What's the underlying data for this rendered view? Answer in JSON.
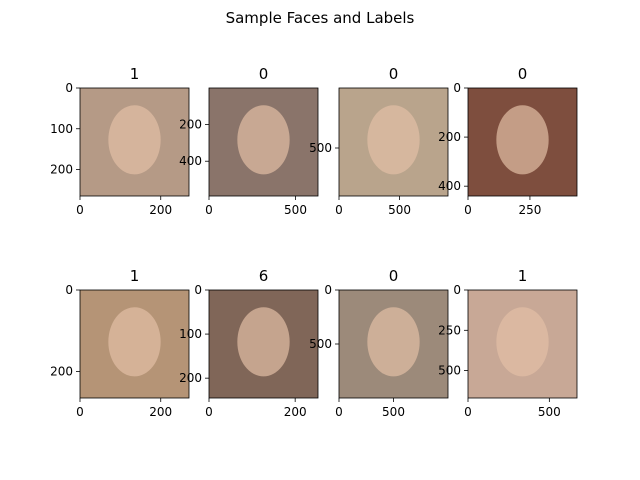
{
  "title": "Sample Faces and Labels",
  "chart_data": [
    {
      "type": "image",
      "title": "1",
      "color": "#b59a86",
      "xlim": [
        0,
        270
      ],
      "ylim": [
        265,
        0
      ],
      "xticks": [
        0,
        200
      ],
      "yticks": [
        0,
        100,
        200
      ]
    },
    {
      "type": "image",
      "title": "0",
      "color": "#8a746a",
      "xlim": [
        0,
        630
      ],
      "ylim": [
        590,
        0
      ],
      "xticks": [
        0,
        500
      ],
      "yticks": [
        200,
        400
      ]
    },
    {
      "type": "image",
      "title": "0",
      "color": "#b9a48c",
      "xlim": [
        0,
        900
      ],
      "ylim": [
        900,
        0
      ],
      "xticks": [
        0,
        500
      ],
      "yticks": [
        500
      ]
    },
    {
      "type": "image",
      "title": "0",
      "color": "#7e4e3e",
      "xlim": [
        0,
        440
      ],
      "ylim": [
        440,
        0
      ],
      "xticks": [
        0,
        250
      ],
      "yticks": [
        0,
        200,
        400
      ]
    },
    {
      "type": "image",
      "title": "1",
      "color": "#b59476",
      "xlim": [
        0,
        270
      ],
      "ylim": [
        265,
        0
      ],
      "xticks": [
        0,
        200
      ],
      "yticks": [
        0,
        200
      ]
    },
    {
      "type": "image",
      "title": "6",
      "color": "#806658",
      "xlim": [
        0,
        253
      ],
      "ylim": [
        245,
        0
      ],
      "xticks": [
        0,
        200
      ],
      "yticks": [
        0,
        100,
        200
      ]
    },
    {
      "type": "image",
      "title": "0",
      "color": "#9c8a7a",
      "xlim": [
        0,
        1000
      ],
      "ylim": [
        1000,
        0
      ],
      "xticks": [
        0,
        500
      ],
      "yticks": [
        0,
        500
      ]
    },
    {
      "type": "image",
      "title": "1",
      "color": "#c8a896",
      "xlim": [
        0,
        670
      ],
      "ylim": [
        670,
        0
      ],
      "xticks": [
        0,
        500
      ],
      "yticks": [
        0,
        250,
        500
      ]
    }
  ]
}
